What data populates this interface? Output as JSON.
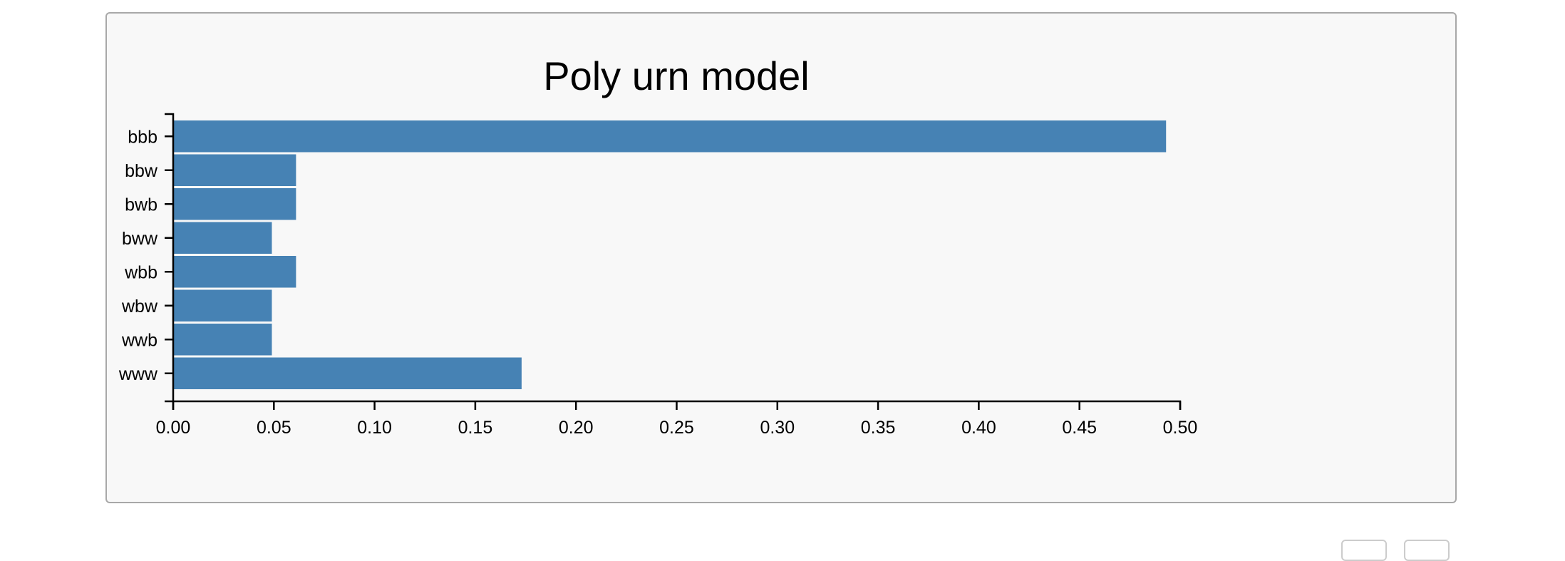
{
  "chart_data": {
    "type": "bar",
    "orientation": "horizontal",
    "title": "Poly urn model",
    "xlabel": "",
    "ylabel": "",
    "categories": [
      "bbb",
      "bbw",
      "bwb",
      "bww",
      "wbb",
      "wbw",
      "wwb",
      "www"
    ],
    "values": [
      0.493,
      0.061,
      0.061,
      0.049,
      0.061,
      0.049,
      0.049,
      0.173
    ],
    "xlim": [
      0,
      0.5
    ],
    "xticks": [
      "0.00",
      "0.05",
      "0.10",
      "0.15",
      "0.20",
      "0.25",
      "0.30",
      "0.35",
      "0.40",
      "0.45",
      "0.50"
    ],
    "grid": false,
    "bar_color": "#4682b4"
  }
}
